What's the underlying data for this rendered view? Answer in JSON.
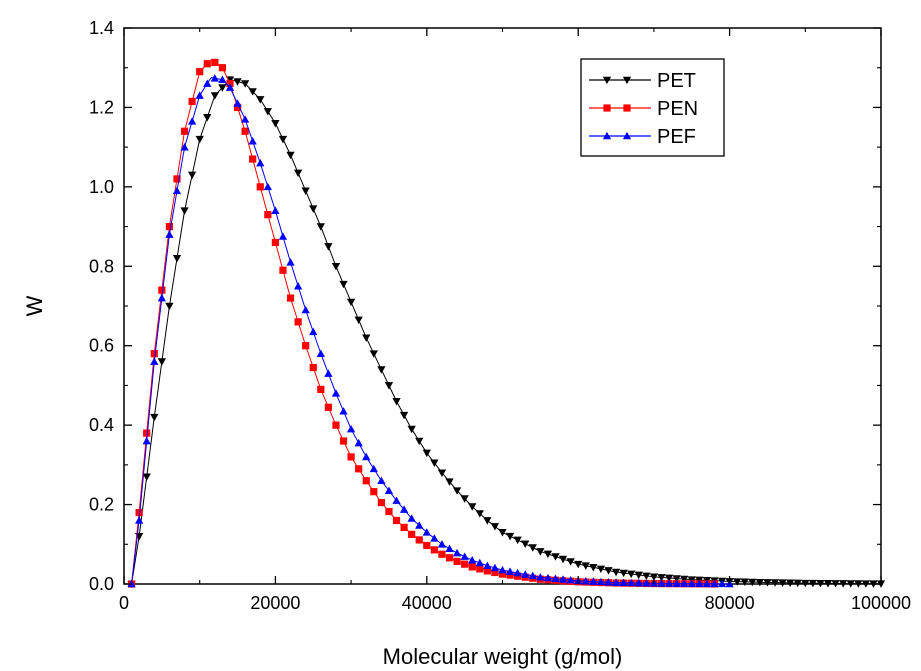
{
  "chart_data": {
    "type": "scatter",
    "title": "",
    "xlabel": "Molecular weight (g/mol)",
    "ylabel": "W",
    "xlim": [
      0,
      100000
    ],
    "ylim": [
      0.0,
      1.4
    ],
    "x_ticks": [
      0,
      20000,
      40000,
      60000,
      80000,
      100000
    ],
    "x_tick_labels": [
      "0",
      "20000",
      "40000",
      "60000",
      "80000",
      "100000"
    ],
    "y_ticks": [
      0.0,
      0.2,
      0.4,
      0.6,
      0.8,
      1.0,
      1.2,
      1.4
    ],
    "y_tick_labels": [
      "0.0",
      "0.2",
      "0.4",
      "0.6",
      "0.8",
      "1.0",
      "1.2",
      "1.4"
    ],
    "grid": false,
    "legend_position": "top-right",
    "series": [
      {
        "name": "PET",
        "color": "#000000",
        "marker": "triangle-down",
        "x": [
          1000,
          2000,
          4000,
          6000,
          8000,
          10000,
          12000,
          14000,
          16000,
          18000,
          20000,
          22000,
          24000,
          26000,
          28000,
          30000,
          32000,
          34000,
          36000,
          38000,
          40000,
          42000,
          44000,
          46000,
          48000,
          50000,
          55000,
          60000,
          65000,
          70000,
          75000,
          80000,
          85000,
          90000,
          95000,
          100000
        ],
        "y": [
          0.0,
          0.12,
          0.42,
          0.7,
          0.94,
          1.12,
          1.23,
          1.27,
          1.26,
          1.22,
          1.16,
          1.08,
          0.99,
          0.9,
          0.8,
          0.71,
          0.62,
          0.54,
          0.46,
          0.39,
          0.33,
          0.28,
          0.235,
          0.195,
          0.16,
          0.13,
          0.082,
          0.05,
          0.03,
          0.018,
          0.011,
          0.0065,
          0.0038,
          0.0022,
          0.0013,
          0.0007
        ]
      },
      {
        "name": "PEN",
        "color": "#ff0000",
        "marker": "square",
        "x": [
          1000,
          2000,
          4000,
          6000,
          8000,
          10000,
          11500,
          13000,
          14000,
          16000,
          18000,
          20000,
          22000,
          24000,
          26000,
          28000,
          30000,
          32000,
          34000,
          36000,
          38000,
          40000,
          42000,
          44000,
          46000,
          48000,
          50000,
          55000,
          60000,
          65000,
          70000,
          75000,
          78000
        ],
        "y": [
          0.0,
          0.18,
          0.58,
          0.9,
          1.14,
          1.29,
          1.32,
          1.3,
          1.26,
          1.14,
          1.0,
          0.86,
          0.72,
          0.6,
          0.49,
          0.4,
          0.32,
          0.26,
          0.205,
          0.16,
          0.125,
          0.097,
          0.075,
          0.057,
          0.043,
          0.033,
          0.025,
          0.012,
          0.0055,
          0.0025,
          0.0011,
          0.0005,
          0.0002
        ]
      },
      {
        "name": "PEF",
        "color": "#0000ff",
        "marker": "triangle-up",
        "x": [
          1000,
          2000,
          4000,
          6000,
          8000,
          10000,
          11500,
          13000,
          14000,
          16000,
          18000,
          20000,
          22000,
          24000,
          26000,
          28000,
          30000,
          32000,
          34000,
          36000,
          38000,
          40000,
          42000,
          44000,
          46000,
          48000,
          50000,
          55000,
          60000,
          65000,
          70000,
          75000,
          80000
        ],
        "y": [
          0.0,
          0.16,
          0.56,
          0.88,
          1.1,
          1.23,
          1.275,
          1.27,
          1.25,
          1.17,
          1.06,
          0.94,
          0.81,
          0.69,
          0.58,
          0.48,
          0.39,
          0.32,
          0.26,
          0.21,
          0.165,
          0.13,
          0.1,
          0.078,
          0.06,
          0.046,
          0.035,
          0.017,
          0.008,
          0.0037,
          0.0017,
          0.0008,
          0.0003
        ]
      }
    ]
  }
}
